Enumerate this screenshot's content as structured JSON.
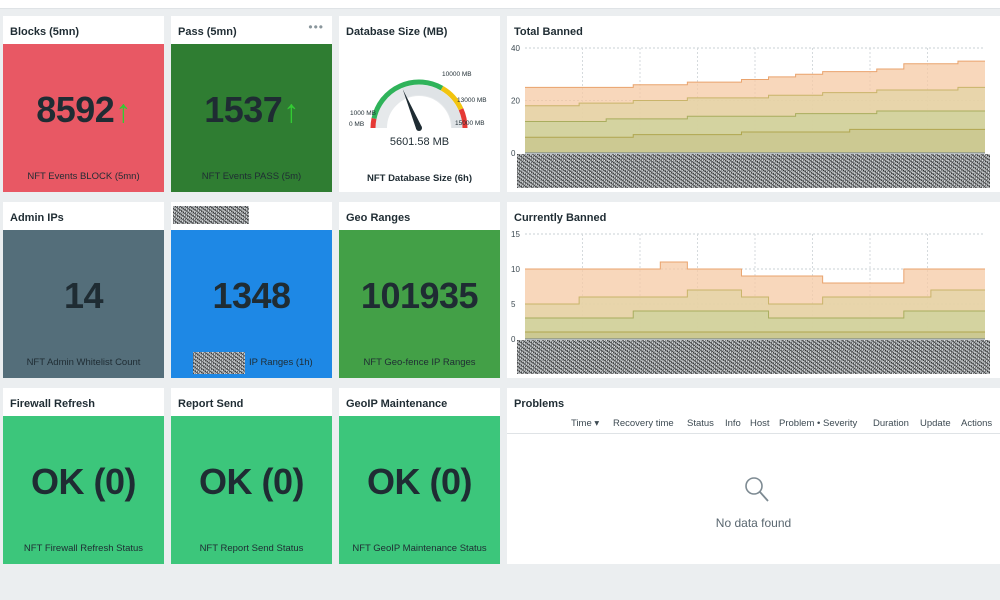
{
  "colors": {
    "red": "#e85864",
    "dark_green": "#2f7d32",
    "slate": "#546e7a",
    "blue": "#1e88e5",
    "green": "#43a047",
    "mint": "#3cc67b",
    "arrow": "#33cc33"
  },
  "tiles": {
    "blocks": {
      "title": "Blocks (5mn)",
      "value": "8592",
      "arrow": "↑",
      "desc": "NFT Events BLOCK (5mn)"
    },
    "pass": {
      "title": "Pass (5mn)",
      "value": "1537",
      "arrow": "↑",
      "desc": "NFT Events PASS (5m)",
      "menu": "•••"
    },
    "admin": {
      "title": "Admin IPs",
      "value": "14",
      "desc": "NFT Admin Whitelist Count"
    },
    "ipranges": {
      "title": "",
      "value": "1348",
      "desc": "IP Ranges (1h)"
    },
    "geo": {
      "title": "Geo Ranges",
      "value": "101935",
      "desc": "NFT Geo-fence IP Ranges"
    },
    "fw": {
      "title": "Firewall Refresh",
      "value": "OK (0)",
      "desc": "NFT Firewall Refresh Status"
    },
    "report": {
      "title": "Report Send",
      "value": "OK (0)",
      "desc": "NFT Report Send Status"
    },
    "geoip": {
      "title": "GeoIP Maintenance",
      "value": "OK (0)",
      "desc": "NFT GeoIP Maintenance Status"
    }
  },
  "gauge": {
    "title": "Database Size (MB)",
    "value": 5601.58,
    "value_label": "5601.58 MB",
    "min": 0,
    "max": 15000,
    "desc": "NFT Database Size (6h)",
    "labels": [
      "0 MB",
      "1000 MB",
      "10000 MB",
      "13000 MB",
      "15000 MB"
    ]
  },
  "chart_data": [
    {
      "type": "area",
      "title": "Total Banned",
      "ylim": [
        0,
        40
      ],
      "yticks": [
        "40",
        "20",
        "0"
      ],
      "grid": true,
      "series": [
        {
          "values": [
            25,
            25,
            25,
            25,
            26,
            26,
            27,
            27,
            28,
            29,
            30,
            31,
            31,
            32,
            34,
            34,
            35,
            35
          ]
        },
        {
          "values": [
            18,
            18,
            19,
            19,
            20,
            20,
            21,
            21,
            21,
            22,
            22,
            23,
            23,
            24,
            24,
            24,
            25,
            25
          ]
        },
        {
          "values": [
            12,
            12,
            12,
            13,
            13,
            13,
            14,
            14,
            14,
            14,
            15,
            15,
            15,
            16,
            16,
            16,
            16,
            16
          ]
        },
        {
          "values": [
            6,
            6,
            6,
            6,
            7,
            7,
            7,
            7,
            8,
            8,
            8,
            8,
            9,
            9,
            9,
            9,
            9,
            9
          ]
        }
      ]
    },
    {
      "type": "area",
      "title": "Currently Banned",
      "ylim": [
        0,
        15
      ],
      "yticks": [
        "15",
        "10",
        "5",
        "0"
      ],
      "grid": true,
      "series": [
        {
          "values": [
            10,
            10,
            10,
            10,
            10,
            11,
            10,
            10,
            9,
            9,
            9,
            8,
            8,
            8,
            10,
            10,
            10,
            10
          ]
        },
        {
          "values": [
            5,
            5,
            6,
            6,
            6,
            6,
            7,
            7,
            6,
            5,
            5,
            6,
            6,
            6,
            6,
            7,
            7,
            7
          ]
        },
        {
          "values": [
            3,
            3,
            3,
            3,
            4,
            4,
            4,
            4,
            4,
            3,
            3,
            3,
            3,
            3,
            4,
            4,
            4,
            4
          ]
        },
        {
          "values": [
            1,
            1,
            1,
            1,
            1,
            1,
            1,
            1,
            1,
            1,
            1,
            1,
            1,
            1,
            1,
            1,
            1,
            1
          ]
        }
      ]
    }
  ],
  "series_colors": [
    "#f5c9a4",
    "#e3d4a6",
    "#cdd29c",
    "#c9c58e"
  ],
  "series_strokes": [
    "#e9a36d",
    "#c9b46a",
    "#a9ad5e",
    "#b0a64f"
  ],
  "problems": {
    "title": "Problems",
    "columns": [
      "Time ▾",
      "Recovery time",
      "Status",
      "Info",
      "Host",
      "Problem • Severity",
      "Duration",
      "Update",
      "Actions"
    ],
    "empty": "No data found",
    "icon": "search-icon"
  }
}
